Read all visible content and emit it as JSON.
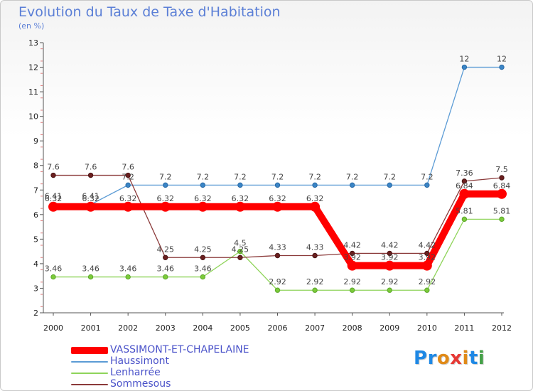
{
  "title": "Evolution du Taux de Taxe d'Habitation",
  "subtitle": "(en %)",
  "logo": "Proxiti",
  "logo_colors": [
    "#1e88e5",
    "#1e88e5",
    "#e08a18",
    "#e63935",
    "#e08a18",
    "#1e88e5",
    "#43a047"
  ],
  "chart_data": {
    "type": "line",
    "x": [
      "2000",
      "2001",
      "2002",
      "2003",
      "2004",
      "2005",
      "2006",
      "2007",
      "2008",
      "2009",
      "2010",
      "2011",
      "2012"
    ],
    "ylim": [
      2,
      13
    ],
    "yticks": [
      2,
      3,
      4,
      5,
      6,
      7,
      8,
      9,
      10,
      11,
      12,
      13
    ],
    "grid": false,
    "legend_placement": "bottom-left",
    "series": [
      {
        "name": "VASSIMONT-ET-CHAPELAINE",
        "color": "#ff0000",
        "values": [
          6.32,
          6.32,
          6.32,
          6.32,
          6.32,
          6.32,
          6.32,
          6.32,
          3.92,
          3.92,
          3.92,
          6.84,
          6.84
        ],
        "labels": [
          "6.32",
          "6.32",
          "6.32",
          "6.32",
          "6.32",
          "6.32",
          "6.32",
          "6.32",
          "3.92",
          "3.92",
          "3.92",
          "6.84",
          "6.84"
        ]
      },
      {
        "name": "Haussimont",
        "color": "#5b9bd5",
        "values": [
          6.41,
          6.41,
          7.2,
          7.2,
          7.2,
          7.2,
          7.2,
          7.2,
          7.2,
          7.2,
          7.2,
          12,
          12
        ],
        "labels": [
          "6.41",
          "6.41",
          "7.2",
          "7.2",
          "7.2",
          "7.2",
          "7.2",
          "7.2",
          "7.2",
          "7.2",
          "7.2",
          "12",
          "12"
        ]
      },
      {
        "name": "Lenharrée",
        "color": "#8fd45a",
        "values": [
          3.46,
          3.46,
          3.46,
          3.46,
          3.46,
          4.5,
          2.92,
          2.92,
          2.92,
          2.92,
          2.92,
          5.81,
          5.81
        ],
        "labels": [
          "3.46",
          "3.46",
          "3.46",
          "3.46",
          "3.46",
          "4.5",
          "2.92",
          "2.92",
          "2.92",
          "2.92",
          "2.92",
          "5.81",
          "5.81"
        ]
      },
      {
        "name": "Sommesous",
        "color": "#8b3a3a",
        "values": [
          7.6,
          7.6,
          7.6,
          4.25,
          4.25,
          4.25,
          4.33,
          4.33,
          4.42,
          4.42,
          4.42,
          7.36,
          7.5
        ],
        "labels": [
          "7.6",
          "7.6",
          "7.6",
          "4.25",
          "4.25",
          "4.25",
          "4.33",
          "4.33",
          "4.42",
          "4.42",
          "4.42",
          "7.36",
          "7.5"
        ]
      }
    ]
  }
}
